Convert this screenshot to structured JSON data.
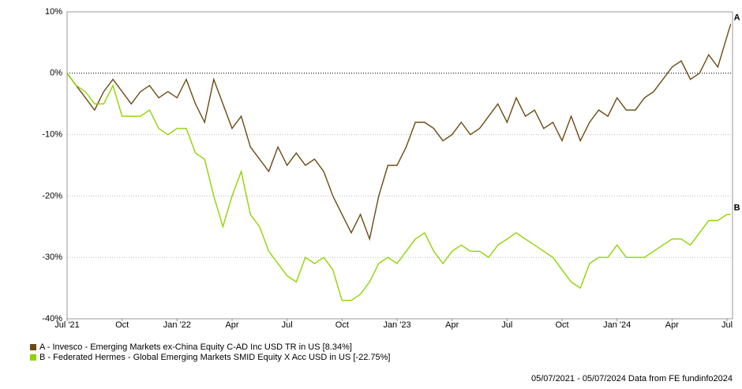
{
  "chart_data": {
    "type": "line",
    "x": [
      0,
      0.5,
      1,
      1.5,
      2,
      2.5,
      3,
      3.5,
      4,
      4.5,
      5,
      5.5,
      6,
      6.5,
      7,
      7.5,
      8,
      8.5,
      9,
      9.5,
      10,
      10.5,
      11,
      11.5,
      12,
      12.5,
      13,
      13.5,
      14,
      14.5,
      15,
      15.5,
      16,
      16.5,
      17,
      17.5,
      18,
      18.5,
      19,
      19.5,
      20,
      20.5,
      21,
      21.5,
      22,
      22.5,
      23,
      23.5,
      24,
      24.5,
      25,
      25.5,
      26,
      26.5,
      27,
      27.5,
      28,
      28.5,
      29,
      29.5,
      30,
      30.5,
      31,
      31.5,
      32,
      32.5,
      33,
      33.5,
      34,
      34.5,
      35,
      35.5,
      36,
      36.2
    ],
    "series": [
      {
        "name": "A - Invesco - Emerging Markets ex-China Equity C-AD Inc USD TR in US [8.34%]",
        "label": "A",
        "color": "#6b4a12",
        "values": [
          0,
          -2,
          -4,
          -6,
          -3,
          -1,
          -3,
          -5,
          -3,
          -2,
          -4,
          -3,
          -4,
          -1,
          -5,
          -8,
          -1,
          -5,
          -9,
          -7,
          -12,
          -14,
          -16,
          -12,
          -15,
          -13,
          -15,
          -14,
          -16,
          -20,
          -23,
          -26,
          -23,
          -27,
          -20,
          -15,
          -15,
          -12,
          -8,
          -8,
          -9,
          -11,
          -10,
          -8,
          -10,
          -9,
          -7,
          -5,
          -8,
          -4,
          -7,
          -6,
          -9,
          -8,
          -11,
          -7,
          -11,
          -8,
          -6,
          -7,
          -4,
          -6,
          -6,
          -4,
          -3,
          -1,
          1,
          2,
          -1,
          0,
          3,
          1,
          6,
          8
        ]
      },
      {
        "name": "B - Federated Hermes - Global Emerging Markets SMID Equity X Acc USD in US [-22.75%]",
        "label": "B",
        "color": "#8fd400",
        "values": [
          0,
          -2,
          -3,
          -5,
          -5,
          -2,
          -7,
          -7,
          -7,
          -6,
          -9,
          -10,
          -9,
          -9,
          -13,
          -14,
          -20,
          -25,
          -20,
          -16,
          -23,
          -25,
          -29,
          -31,
          -33,
          -34,
          -30,
          -31,
          -30,
          -32,
          -37,
          -37,
          -36,
          -34,
          -31,
          -30,
          -31,
          -29,
          -27,
          -26,
          -29,
          -31,
          -29,
          -28,
          -29,
          -29,
          -30,
          -28,
          -27,
          -26,
          -27,
          -28,
          -29,
          -30,
          -32,
          -34,
          -35,
          -31,
          -30,
          -30,
          -28,
          -30,
          -30,
          -30,
          -29,
          -28,
          -27,
          -27,
          -28,
          -26,
          -24,
          -24,
          -23,
          -23
        ]
      }
    ],
    "xlim": [
      0,
      36.3
    ],
    "xticks": [
      {
        "value": 0,
        "label": "Jul '21"
      },
      {
        "value": 3,
        "label": "Oct"
      },
      {
        "value": 6,
        "label": "Jan '22"
      },
      {
        "value": 9,
        "label": "Apr"
      },
      {
        "value": 12,
        "label": "Jul"
      },
      {
        "value": 15,
        "label": "Oct"
      },
      {
        "value": 18,
        "label": "Jan '23"
      },
      {
        "value": 21,
        "label": "Apr"
      },
      {
        "value": 24,
        "label": "Jul"
      },
      {
        "value": 27,
        "label": "Oct"
      },
      {
        "value": 30,
        "label": "Jan '24"
      },
      {
        "value": 33,
        "label": "Apr"
      },
      {
        "value": 36,
        "label": "Jul"
      }
    ],
    "ylim": [
      -40,
      10
    ],
    "yticks": [
      {
        "value": -40,
        "label": "-40%"
      },
      {
        "value": -30,
        "label": "-30%"
      },
      {
        "value": -20,
        "label": "-20%"
      },
      {
        "value": -10,
        "label": "-10%"
      },
      {
        "value": 0,
        "label": "0%"
      },
      {
        "value": 10,
        "label": "10%"
      }
    ],
    "grid": true,
    "reference_line": 0,
    "legend": "bottom-left",
    "footer": "05/07/2021 - 05/07/2024 Data from FE fundinfo2024"
  }
}
